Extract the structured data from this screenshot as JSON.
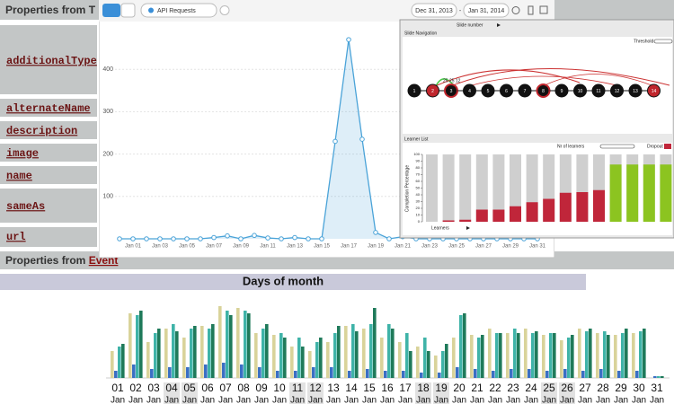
{
  "schema_table": {
    "header": "Properties from T",
    "rows": [
      "additionalType",
      "alternateName",
      "description",
      "image",
      "name",
      "sameAs",
      "url"
    ],
    "footer": "Properties from ",
    "footer_link": "Event"
  },
  "api_window": {
    "dropdown": "API Requests",
    "date_from": "Dec 31, 2013",
    "date_sep": "-",
    "date_to": "Jan 31, 2014"
  },
  "learner_panel": {
    "slide_axis": "Slide number",
    "navigation_title": "Slide Navigation",
    "threshold_label": "Threshold",
    "edge_label": "25 25 12",
    "nodes": [
      "1",
      "2",
      "3",
      "4",
      "5",
      "6",
      "7",
      "8",
      "9",
      "10",
      "11",
      "12",
      "13",
      "14"
    ],
    "node_style": [
      "plain",
      "filled",
      "ring",
      "plain",
      "plain",
      "plain",
      "plain",
      "ring",
      "plain",
      "plain",
      "plain",
      "plain",
      "plain",
      "filled"
    ],
    "list_title": "Learner List",
    "count_label": "Nr of learners",
    "dropout_label": "Dropout"
  },
  "chart_data": [
    {
      "type": "line",
      "categories": [
        null,
        "Jan 01",
        null,
        "Jan 03",
        null,
        "Jan 05",
        null,
        "Jan 07",
        null,
        "Jan 09",
        null,
        "Jan 11",
        null,
        "Jan 13",
        null,
        "Jan 15",
        null,
        "Jan 17",
        null,
        "Jan 19",
        null,
        "Jan 21",
        null,
        "Jan 23",
        null,
        "Jan 25",
        null,
        "Jan 27",
        null,
        "Jan 29",
        null,
        "Jan 31"
      ],
      "values": [
        0,
        0,
        0,
        0,
        0,
        0,
        0,
        3,
        7,
        0,
        8,
        2,
        0,
        3,
        0,
        0,
        230,
        470,
        235,
        15,
        0,
        5,
        0,
        0,
        0,
        0,
        0,
        0,
        0,
        0,
        0,
        0
      ],
      "color": "#4aa3d8",
      "ylim": [
        0,
        500
      ],
      "yticks": [
        100,
        200,
        300,
        400
      ],
      "grid": true
    },
    {
      "type": "bar",
      "x_label": "Learners",
      "y_label": "Completion Percentage",
      "categories": [
        null,
        null,
        null,
        null,
        null,
        null,
        null,
        null,
        null,
        null,
        null,
        null,
        null,
        null,
        null
      ],
      "values": [
        0,
        2,
        3,
        18,
        18,
        23,
        29,
        34,
        43,
        44,
        47,
        85,
        85,
        85,
        85
      ],
      "colors": [
        "#c0263a",
        "#c0263a",
        "#c0263a",
        "#c0263a",
        "#c0263a",
        "#c0263a",
        "#c0263a",
        "#c0263a",
        "#c0263a",
        "#c0263a",
        "#c0263a",
        "#8cc420",
        "#8cc420",
        "#8cc420",
        "#8cc420"
      ],
      "ylim": [
        0,
        100
      ],
      "yticks": [
        0,
        10,
        20,
        30,
        40,
        50,
        60,
        70,
        80,
        90,
        100
      ]
    },
    {
      "type": "grouped_bar",
      "title": "Days of month",
      "categories": [
        "01",
        "02",
        "03",
        "04",
        "05",
        "06",
        "07",
        "08",
        "09",
        "10",
        "11",
        "12",
        "13",
        "14",
        "15",
        "16",
        "17",
        "18",
        "19",
        "20",
        "21",
        "22",
        "23",
        "24",
        "25",
        "26",
        "27",
        "28",
        "29",
        "30",
        "31"
      ],
      "sublabels": [
        "Jan",
        "Jan",
        "Jan",
        "Jan",
        "Jan",
        "Jan",
        "Jan",
        "Jan",
        "Jan",
        "Jan",
        "Jan",
        "Jan",
        "Jan",
        "Jan",
        "Jan",
        "Jan",
        "Jan",
        "Jan",
        "Jan",
        "Jan",
        "Jan",
        "Jan",
        "Jan",
        "Jan",
        "Jan",
        "Jan",
        "Jan",
        "Jan",
        "Jan",
        "Jan",
        "Jan"
      ],
      "highlighted": [
        false,
        false,
        false,
        true,
        true,
        false,
        false,
        false,
        false,
        false,
        true,
        true,
        false,
        false,
        false,
        false,
        false,
        true,
        true,
        false,
        false,
        false,
        false,
        false,
        true,
        true,
        false,
        false,
        false,
        false,
        false
      ],
      "ylim": [
        0,
        90
      ],
      "series": [
        {
          "color": "#d9d39a",
          "values": [
            30,
            72,
            40,
            55,
            45,
            58,
            80,
            78,
            50,
            48,
            35,
            30,
            40,
            58,
            55,
            45,
            40,
            35,
            25,
            45,
            48,
            55,
            50,
            55,
            48,
            42,
            55,
            50,
            48,
            50,
            0
          ]
        },
        {
          "color": "#3a6fc4",
          "values": [
            8,
            15,
            10,
            12,
            12,
            15,
            17,
            15,
            12,
            8,
            8,
            12,
            12,
            8,
            10,
            8,
            8,
            6,
            6,
            12,
            10,
            8,
            10,
            10,
            8,
            10,
            8,
            10,
            8,
            8,
            2
          ]
        },
        {
          "color": "#3fb3a8",
          "values": [
            35,
            70,
            50,
            60,
            55,
            55,
            75,
            75,
            55,
            50,
            45,
            40,
            50,
            60,
            60,
            60,
            50,
            45,
            30,
            70,
            45,
            50,
            55,
            50,
            50,
            45,
            52,
            52,
            50,
            52,
            2
          ]
        },
        {
          "color": "#1f7a5a",
          "values": [
            38,
            75,
            55,
            52,
            58,
            60,
            70,
            72,
            60,
            45,
            35,
            45,
            58,
            52,
            78,
            55,
            30,
            30,
            38,
            72,
            48,
            50,
            50,
            52,
            50,
            48,
            55,
            48,
            55,
            55,
            2
          ]
        }
      ]
    }
  ]
}
